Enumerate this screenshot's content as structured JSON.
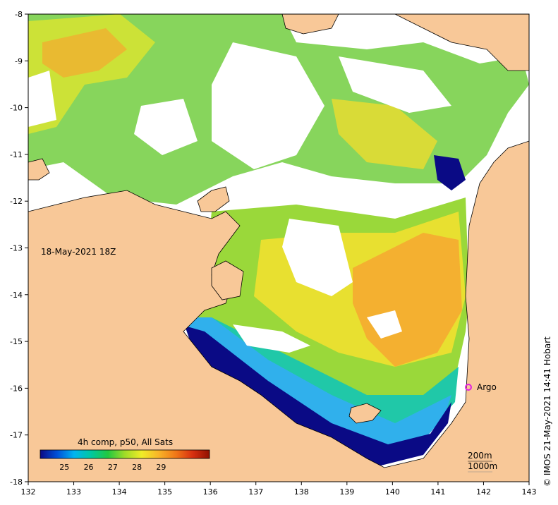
{
  "map": {
    "date_label": "18-May-2021 18Z",
    "colorbar_title": "4h comp, p50, All Sats",
    "colorbar_ticks": [
      "25",
      "26",
      "27",
      "28",
      "29"
    ],
    "colorbar_colors": [
      "#0a0a85",
      "#0050d8",
      "#00b4f0",
      "#00c8a0",
      "#22c840",
      "#a0dc28",
      "#f0ec28",
      "#f8b428",
      "#f07818",
      "#d83010",
      "#901000"
    ],
    "contour_200m": "200m",
    "contour_1000m": "1000m",
    "argo_label": "Argo",
    "argo_color": "#e020e0",
    "credit": "© IMOS 21-May-2021 14:41 Hobart",
    "land_color": "#f8c898",
    "x_ticks": [
      "132",
      "133",
      "134",
      "135",
      "136",
      "137",
      "138",
      "139",
      "140",
      "141",
      "142",
      "143"
    ],
    "y_ticks": [
      "-8",
      "-9",
      "-10",
      "-11",
      "-12",
      "-13",
      "-14",
      "-15",
      "-16",
      "-17",
      "-18"
    ]
  }
}
